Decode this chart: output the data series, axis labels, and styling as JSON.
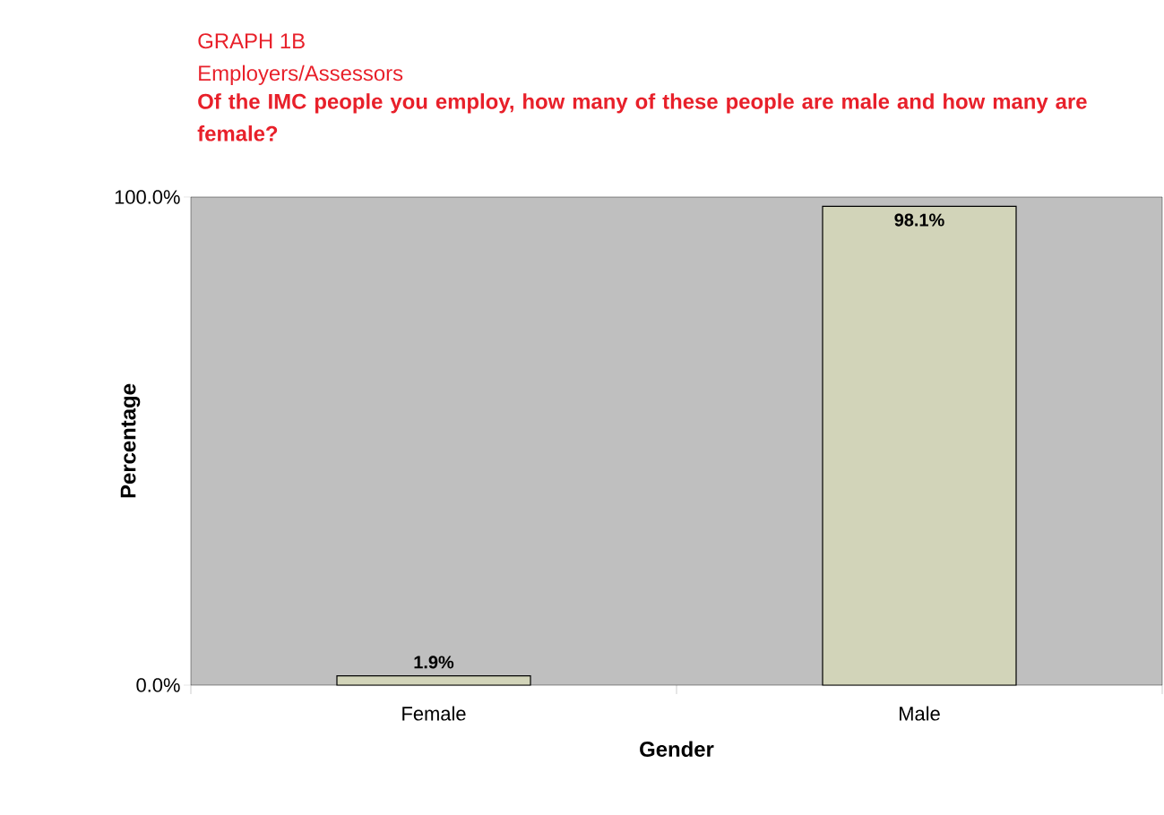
{
  "chart_data": {
    "type": "bar",
    "title": "GRAPH 1B",
    "subtitle": "Employers/Assessors",
    "annotations": [
      "**Of the IMC people you employ, how many of these people are male and how many are female?**"
    ],
    "xlabel": "Gender",
    "ylabel": "Percentage",
    "categories": [
      "Female",
      "Male"
    ],
    "values": [
      1.9,
      98.1
    ],
    "value_labels": [
      "1.9%",
      "98.1%"
    ],
    "color": "#d2d4b9",
    "ylim": [
      0,
      100
    ],
    "yticks": [
      {
        "value": 0,
        "label": "0.0%"
      },
      {
        "value": 100,
        "label": "100.0%"
      }
    ]
  }
}
